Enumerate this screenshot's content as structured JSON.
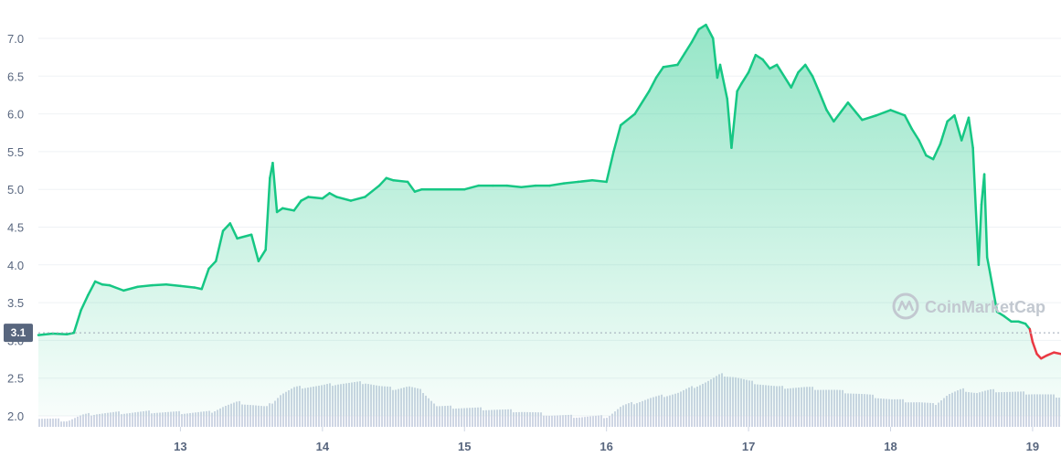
{
  "brand": {
    "watermark": "CoinMarketCap"
  },
  "colors": {
    "up_line": "#16c784",
    "down_line": "#ea3943",
    "area_fill": "#16c784",
    "volume": "#cfd6e4",
    "badge_bg": "#58667e",
    "reference_line": "#9ea8b6"
  },
  "chart_data": {
    "type": "line",
    "title": "",
    "xlabel": "",
    "ylabel": "",
    "ylim": [
      2.0,
      7.0
    ],
    "y_ticks": [
      "2.0",
      "2.5",
      "3.0",
      "3.5",
      "4.0",
      "4.5",
      "5.0",
      "5.5",
      "6.0",
      "6.5",
      "7.0"
    ],
    "x_ticks": [
      {
        "label": "13",
        "x": 13
      },
      {
        "label": "14",
        "x": 14
      },
      {
        "label": "15",
        "x": 15
      },
      {
        "label": "16",
        "x": 16
      },
      {
        "label": "17",
        "x": 17
      },
      {
        "label": "18",
        "x": 18
      },
      {
        "label": "19",
        "x": 19
      }
    ],
    "xlim": [
      12.0,
      19.2
    ],
    "grid": true,
    "reference_value": 3.1,
    "reference_label": "3.1",
    "series": [
      {
        "points": [
          [
            12.0,
            3.07
          ],
          [
            12.1,
            3.09
          ],
          [
            12.2,
            3.08
          ],
          [
            12.25,
            3.1
          ],
          [
            12.3,
            3.4
          ],
          [
            12.35,
            3.6
          ],
          [
            12.4,
            3.78
          ],
          [
            12.45,
            3.74
          ],
          [
            12.5,
            3.73
          ],
          [
            12.6,
            3.66
          ],
          [
            12.7,
            3.71
          ],
          [
            12.8,
            3.73
          ],
          [
            12.9,
            3.74
          ],
          [
            13.0,
            3.72
          ],
          [
            13.1,
            3.7
          ],
          [
            13.15,
            3.68
          ],
          [
            13.2,
            3.95
          ],
          [
            13.25,
            4.05
          ],
          [
            13.3,
            4.45
          ],
          [
            13.35,
            4.55
          ],
          [
            13.4,
            4.35
          ],
          [
            13.5,
            4.4
          ],
          [
            13.55,
            4.05
          ],
          [
            13.6,
            4.2
          ],
          [
            13.63,
            5.15
          ],
          [
            13.65,
            5.35
          ],
          [
            13.68,
            4.7
          ],
          [
            13.72,
            4.75
          ],
          [
            13.8,
            4.72
          ],
          [
            13.85,
            4.85
          ],
          [
            13.9,
            4.9
          ],
          [
            14.0,
            4.88
          ],
          [
            14.05,
            4.95
          ],
          [
            14.1,
            4.9
          ],
          [
            14.2,
            4.85
          ],
          [
            14.3,
            4.9
          ],
          [
            14.4,
            5.05
          ],
          [
            14.45,
            5.15
          ],
          [
            14.5,
            5.12
          ],
          [
            14.6,
            5.1
          ],
          [
            14.65,
            4.97
          ],
          [
            14.7,
            5.0
          ],
          [
            14.8,
            5.0
          ],
          [
            14.9,
            5.0
          ],
          [
            15.0,
            5.0
          ],
          [
            15.1,
            5.05
          ],
          [
            15.2,
            5.05
          ],
          [
            15.3,
            5.05
          ],
          [
            15.4,
            5.03
          ],
          [
            15.5,
            5.05
          ],
          [
            15.6,
            5.05
          ],
          [
            15.7,
            5.08
          ],
          [
            15.8,
            5.1
          ],
          [
            15.9,
            5.12
          ],
          [
            16.0,
            5.1
          ],
          [
            16.05,
            5.5
          ],
          [
            16.1,
            5.85
          ],
          [
            16.2,
            6.0
          ],
          [
            16.3,
            6.3
          ],
          [
            16.35,
            6.48
          ],
          [
            16.4,
            6.62
          ],
          [
            16.5,
            6.65
          ],
          [
            16.55,
            6.8
          ],
          [
            16.6,
            6.95
          ],
          [
            16.65,
            7.12
          ],
          [
            16.7,
            7.18
          ],
          [
            16.75,
            7.0
          ],
          [
            16.78,
            6.48
          ],
          [
            16.8,
            6.65
          ],
          [
            16.85,
            6.2
          ],
          [
            16.88,
            5.55
          ],
          [
            16.92,
            6.3
          ],
          [
            16.95,
            6.4
          ],
          [
            17.0,
            6.55
          ],
          [
            17.05,
            6.78
          ],
          [
            17.1,
            6.72
          ],
          [
            17.15,
            6.6
          ],
          [
            17.2,
            6.65
          ],
          [
            17.3,
            6.35
          ],
          [
            17.35,
            6.55
          ],
          [
            17.4,
            6.65
          ],
          [
            17.45,
            6.5
          ],
          [
            17.5,
            6.28
          ],
          [
            17.55,
            6.05
          ],
          [
            17.6,
            5.9
          ],
          [
            17.7,
            6.15
          ],
          [
            17.8,
            5.92
          ],
          [
            17.9,
            5.98
          ],
          [
            18.0,
            6.05
          ],
          [
            18.1,
            5.98
          ],
          [
            18.15,
            5.8
          ],
          [
            18.2,
            5.65
          ],
          [
            18.25,
            5.45
          ],
          [
            18.3,
            5.4
          ],
          [
            18.35,
            5.6
          ],
          [
            18.4,
            5.9
          ],
          [
            18.45,
            5.98
          ],
          [
            18.5,
            5.65
          ],
          [
            18.55,
            5.95
          ],
          [
            18.58,
            5.55
          ],
          [
            18.6,
            4.75
          ],
          [
            18.62,
            4.0
          ],
          [
            18.64,
            4.8
          ],
          [
            18.66,
            5.2
          ],
          [
            18.68,
            4.1
          ],
          [
            18.7,
            3.9
          ],
          [
            18.75,
            3.38
          ],
          [
            18.8,
            3.32
          ],
          [
            18.85,
            3.25
          ],
          [
            18.9,
            3.25
          ],
          [
            18.95,
            3.22
          ],
          [
            18.98,
            3.15
          ],
          [
            19.0,
            2.98
          ],
          [
            19.03,
            2.82
          ],
          [
            19.06,
            2.76
          ],
          [
            19.1,
            2.8
          ],
          [
            19.15,
            2.84
          ],
          [
            19.2,
            2.82
          ]
        ]
      }
    ],
    "volume": [
      [
        12.0,
        0.18
      ],
      [
        12.2,
        0.12
      ],
      [
        12.3,
        0.25
      ],
      [
        12.4,
        0.3
      ],
      [
        12.6,
        0.32
      ],
      [
        12.8,
        0.34
      ],
      [
        13.0,
        0.32
      ],
      [
        13.2,
        0.33
      ],
      [
        13.3,
        0.48
      ],
      [
        13.4,
        0.58
      ],
      [
        13.5,
        0.52
      ],
      [
        13.6,
        0.45
      ],
      [
        13.7,
        0.78
      ],
      [
        13.8,
        0.95
      ],
      [
        14.0,
        1.0
      ],
      [
        14.1,
        1.05
      ],
      [
        14.3,
        1.08
      ],
      [
        14.4,
        0.98
      ],
      [
        14.5,
        0.92
      ],
      [
        14.6,
        0.98
      ],
      [
        14.7,
        0.86
      ],
      [
        14.8,
        0.48
      ],
      [
        15.0,
        0.44
      ],
      [
        15.2,
        0.4
      ],
      [
        15.4,
        0.35
      ],
      [
        15.6,
        0.26
      ],
      [
        15.8,
        0.22
      ],
      [
        16.0,
        0.22
      ],
      [
        16.1,
        0.48
      ],
      [
        16.3,
        0.68
      ],
      [
        16.5,
        0.82
      ],
      [
        16.7,
        1.1
      ],
      [
        16.8,
        1.28
      ],
      [
        16.9,
        1.22
      ],
      [
        17.0,
        1.1
      ],
      [
        17.2,
        0.96
      ],
      [
        17.4,
        0.95
      ],
      [
        17.6,
        0.88
      ],
      [
        17.8,
        0.78
      ],
      [
        18.0,
        0.65
      ],
      [
        18.2,
        0.58
      ],
      [
        18.3,
        0.52
      ],
      [
        18.4,
        0.78
      ],
      [
        18.5,
        0.9
      ],
      [
        18.6,
        0.82
      ],
      [
        18.7,
        0.88
      ],
      [
        18.8,
        0.85
      ],
      [
        19.0,
        0.8
      ],
      [
        19.2,
        0.72
      ]
    ]
  }
}
